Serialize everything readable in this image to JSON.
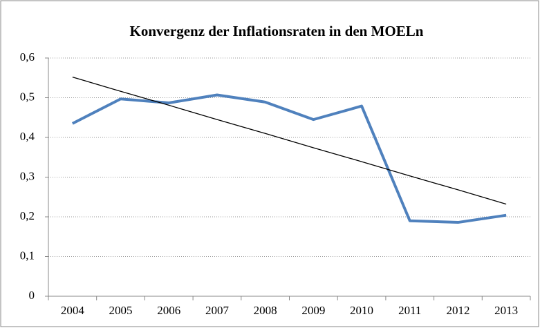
{
  "chart_data": {
    "type": "line",
    "title": "Konvergenz der Inflationsraten in den MOELn",
    "categories": [
      "2004",
      "2005",
      "2006",
      "2007",
      "2008",
      "2009",
      "2010",
      "2011",
      "2012",
      "2013"
    ],
    "series": [
      {
        "color": "#4f81bd",
        "values": [
          0.435,
          0.497,
          0.487,
          0.507,
          0.489,
          0.445,
          0.479,
          0.19,
          0.186,
          0.204
        ]
      },
      {
        "color": "#000000",
        "values": [
          0.552,
          0.516,
          0.481,
          0.445,
          0.41,
          0.374,
          0.339,
          0.303,
          0.268,
          0.232
        ]
      }
    ],
    "ylim": [
      0,
      0.6
    ],
    "yticks": [
      0,
      {
        "value": 0.1,
        "label": "0,1"
      },
      {
        "value": 0.2,
        "label": "0,2"
      },
      {
        "value": 0.3,
        "label": "0,3"
      },
      {
        "value": 0.4,
        "label": "0,4"
      },
      {
        "value": 0.5,
        "label": "0,5"
      },
      {
        "value": 0.6,
        "label": "0,6"
      }
    ],
    "grid": true
  }
}
